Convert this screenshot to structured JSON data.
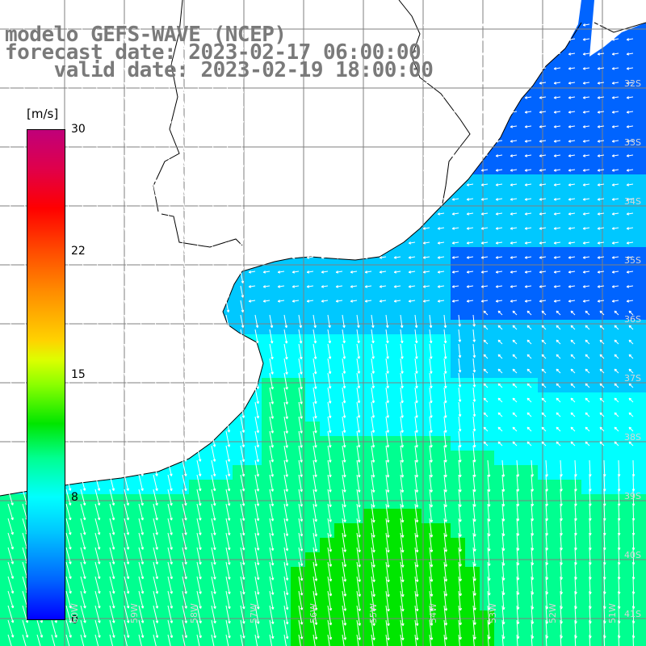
{
  "title": {
    "line1": "modelo GEFS-WAVE (NCEP)",
    "line2": "forecast date: 2023-02-17 06:00:00",
    "line3": "    valid date: 2023-02-19 18:00:00"
  },
  "colorbar": {
    "unit": "[m/s]",
    "ticks": [
      "30",
      "22",
      "15",
      "8",
      "0"
    ],
    "range": [
      0,
      30
    ],
    "colors": [
      "#0000ff",
      "#0064ff",
      "#00c8ff",
      "#00ffff",
      "#00ff90",
      "#00e600",
      "#8cff00",
      "#ffd200",
      "#ff8c00",
      "#ff0000",
      "#c0007a"
    ]
  },
  "map": {
    "lat_labels": [
      "32S",
      "33S",
      "34S",
      "35S",
      "36S",
      "37S",
      "38S",
      "39S",
      "40S",
      "41S"
    ],
    "lon_labels": [
      "60W",
      "59W",
      "58W",
      "57W",
      "56W",
      "55W",
      "54W",
      "53W",
      "52W",
      "51W"
    ],
    "land_color": "#ffffff",
    "grid_color": "#7f7f7f",
    "vector_color": "#ffffff"
  }
}
